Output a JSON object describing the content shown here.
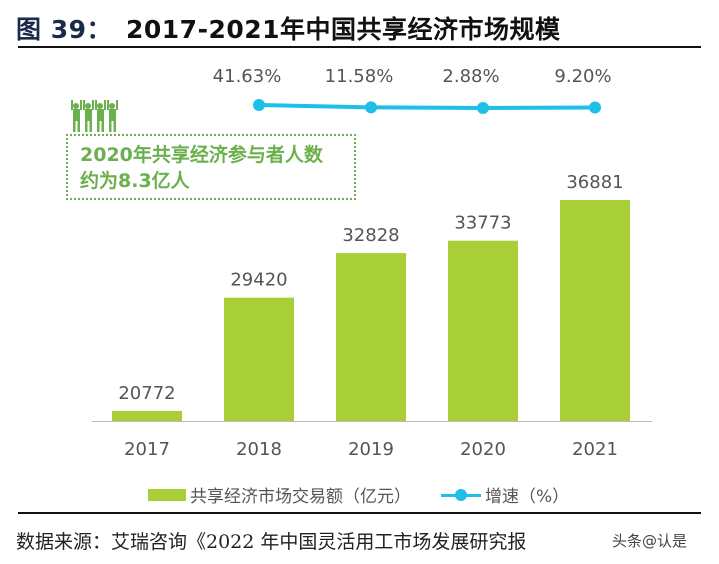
{
  "title": {
    "figure": "图 39：",
    "text": "2017-2021年中国共享经济市场规模"
  },
  "callout": {
    "line1": "2020年共享经济参与者人数",
    "line2": "约为8.3亿人",
    "icon": "people-cheering-icon"
  },
  "chart_data": {
    "type": "bar+line",
    "categories": [
      "2017",
      "2018",
      "2019",
      "2020",
      "2021"
    ],
    "series": [
      {
        "name": "共享经济市场交易额（亿元）",
        "type": "bar",
        "values": [
          20772,
          29420,
          32828,
          33773,
          36881
        ],
        "labels": [
          "20772",
          "29420",
          "32828",
          "33773",
          "36881"
        ],
        "color": "#a8cf38"
      },
      {
        "name": "增速（%）",
        "type": "line",
        "values": [
          null,
          41.63,
          11.58,
          2.88,
          9.2
        ],
        "labels": [
          "",
          "41.63%",
          "11.58%",
          "2.88%",
          "9.20%"
        ],
        "color": "#1ec0e8"
      }
    ],
    "ylim": [
      20000,
      37000
    ],
    "grid": false,
    "legend_position": "bottom"
  },
  "legend": {
    "bar": "共享经济市场交易额（亿元）",
    "line": "增速（%）"
  },
  "source": "数据来源：艾瑞咨询《2022 年中国灵活用工市场发展研究报",
  "watermark": "头条@认是"
}
